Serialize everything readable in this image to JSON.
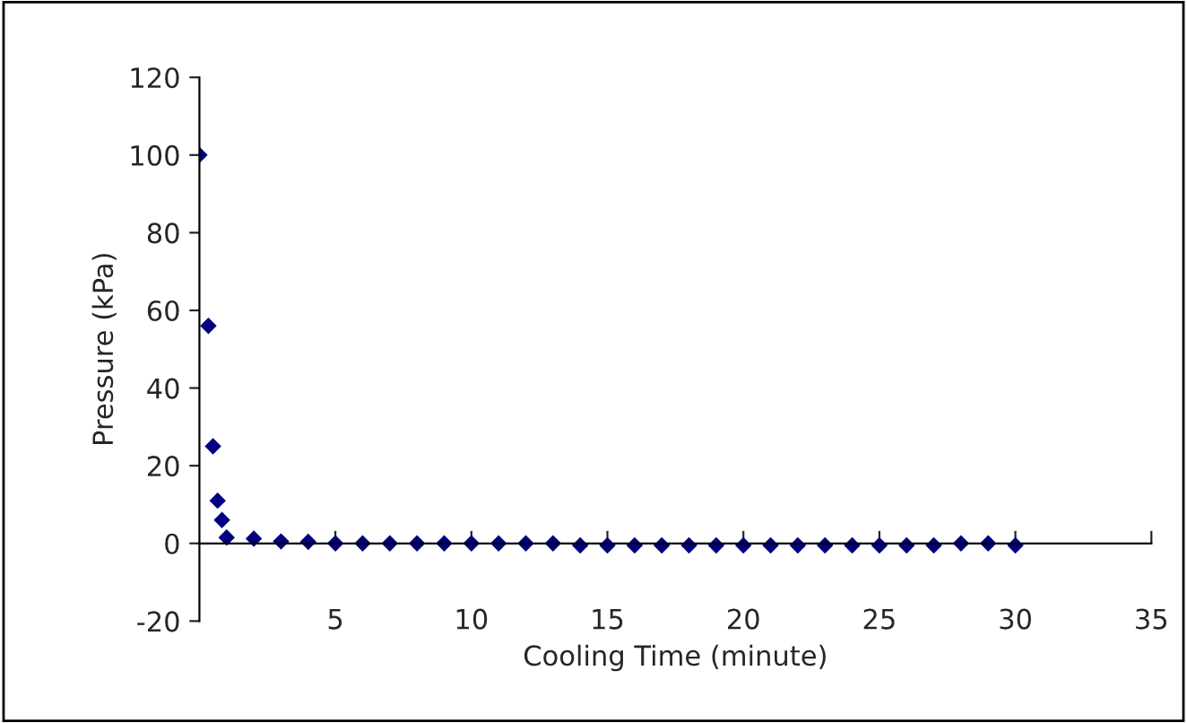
{
  "chart_data": {
    "type": "scatter",
    "xlabel": "Cooling Time (minute)",
    "ylabel": "Pressure (kPa)",
    "x": [
      0,
      0.33,
      0.5,
      0.67,
      0.83,
      1,
      2,
      3,
      4,
      5,
      6,
      7,
      8,
      9,
      10,
      11,
      12,
      13,
      14,
      15,
      16,
      17,
      18,
      19,
      20,
      21,
      22,
      23,
      24,
      25,
      26,
      27,
      28,
      29,
      30
    ],
    "series": [
      {
        "color": "#000080",
        "values": [
          100,
          56,
          25,
          11,
          6,
          1.5,
          1.2,
          0.5,
          0.4,
          0,
          0,
          0,
          0,
          0,
          0,
          0,
          0,
          0,
          -0.5,
          -0.5,
          -0.5,
          -0.5,
          -0.5,
          -0.5,
          -0.5,
          -0.5,
          -0.5,
          -0.5,
          -0.5,
          -0.5,
          -0.5,
          -0.5,
          0,
          0,
          -0.5
        ]
      }
    ],
    "xlim": [
      0,
      35
    ],
    "xticks": [
      5,
      10,
      15,
      20,
      25,
      30,
      35
    ],
    "ylim": [
      -20,
      120
    ],
    "yticks": [
      -20,
      0,
      20,
      40,
      60,
      80,
      100,
      120
    ],
    "marker": "diamond",
    "grid": false,
    "legend": false
  }
}
